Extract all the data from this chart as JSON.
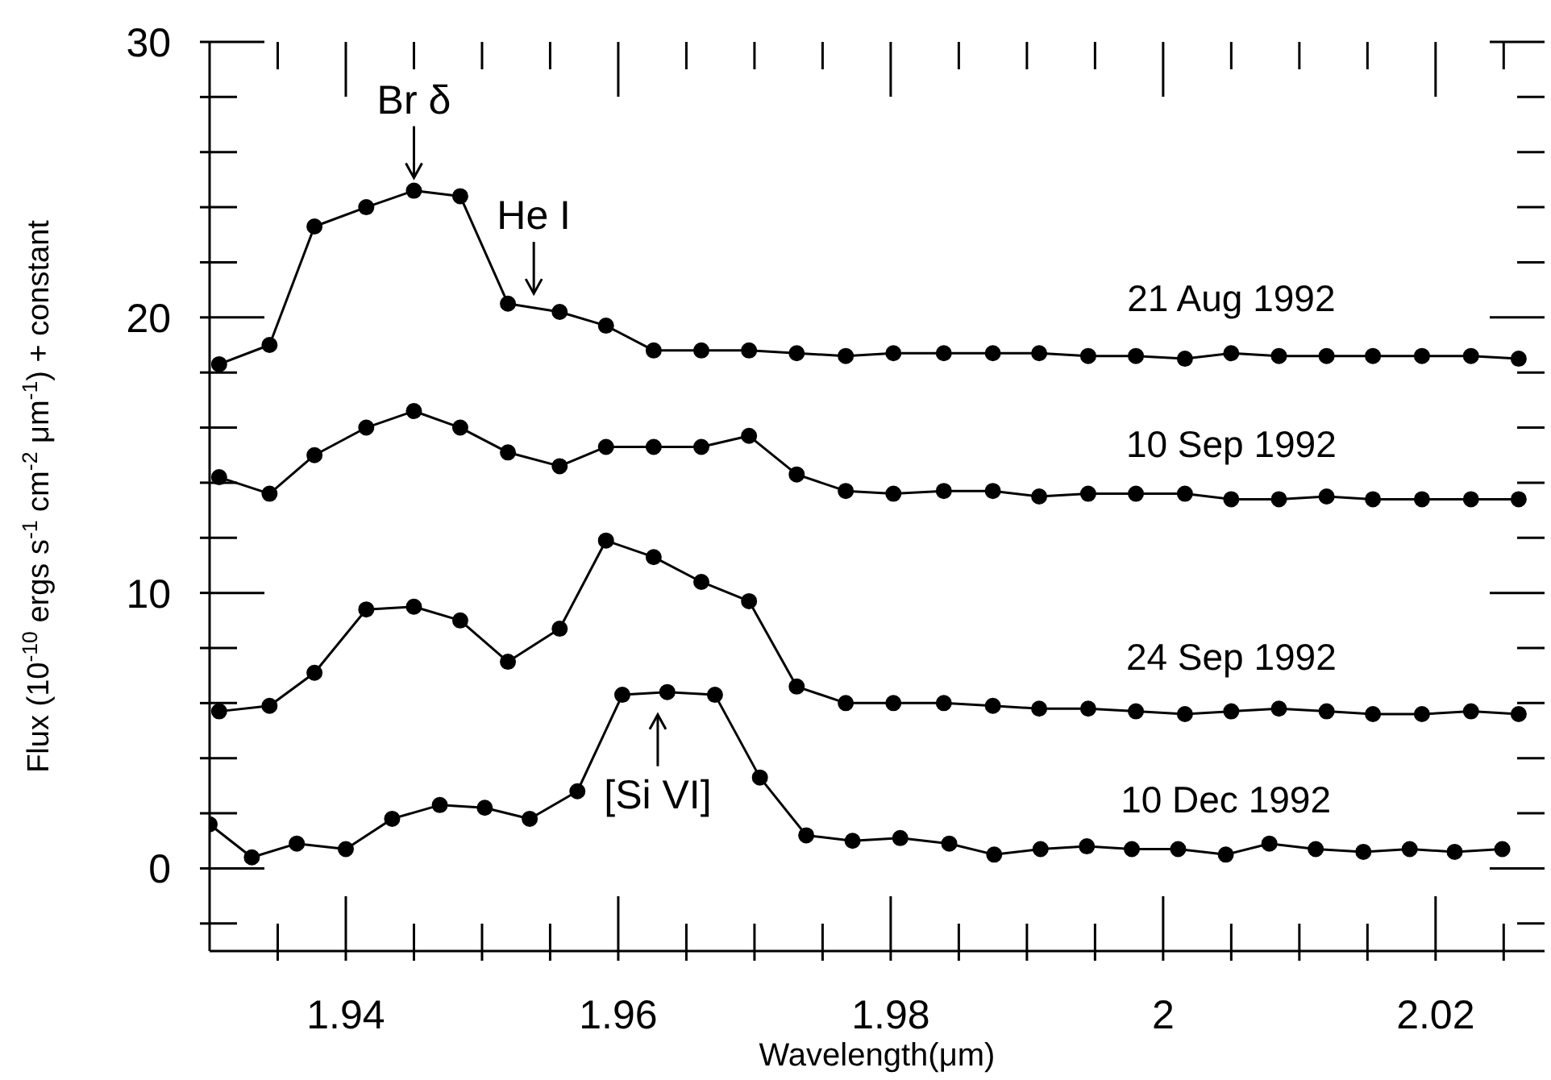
{
  "chart_data": {
    "type": "line",
    "xlabel": "Wavelength(μm)",
    "ylabel": "Flux (10$^{-10}$ ergs s$^{-1}$ cm$^{-2}$ μm$^{-1}$) + constant",
    "xlim": [
      1.93,
      2.028
    ],
    "ylim": [
      -3,
      30
    ],
    "xticks": [
      {
        "value": 1.935,
        "label": null
      },
      1.94,
      {
        "value": 1.945,
        "label": null
      },
      {
        "value": 1.95,
        "label": null
      },
      {
        "value": 1.955,
        "label": null
      },
      1.96,
      {
        "value": 1.965,
        "label": null
      },
      {
        "value": 1.97,
        "label": null
      },
      {
        "value": 1.975,
        "label": null
      },
      1.98,
      {
        "value": 1.985,
        "label": null
      },
      {
        "value": 1.99,
        "label": null
      },
      {
        "value": 1.995,
        "label": null
      },
      2,
      {
        "value": 2.005,
        "label": null
      },
      {
        "value": 2.01,
        "label": null
      },
      {
        "value": 2.015,
        "label": null
      },
      2.02,
      {
        "value": 2.025,
        "label": null
      }
    ],
    "yticks": [
      {
        "value": -2,
        "label": null
      },
      0,
      {
        "value": 2,
        "label": null
      },
      {
        "value": 4,
        "label": null
      },
      {
        "value": 6,
        "label": null
      },
      {
        "value": 8,
        "label": null
      },
      10,
      {
        "value": 12,
        "label": null
      },
      {
        "value": 14,
        "label": null
      },
      {
        "value": 16,
        "label": null
      },
      {
        "value": 18,
        "label": null
      },
      20,
      {
        "value": 22,
        "label": null
      },
      {
        "value": 24,
        "label": null
      },
      {
        "value": 26,
        "label": null
      },
      {
        "value": 28,
        "label": null
      },
      30
    ],
    "marker": "circle",
    "line_style": "solid",
    "legend": false,
    "series": [
      {
        "name": "21 Aug 1992",
        "color": "#000000",
        "x": [
          1.9307,
          1.9344,
          1.9377,
          1.9415,
          1.945,
          1.9484,
          1.9519,
          1.9557,
          1.9591,
          1.9626,
          1.9661,
          1.9696,
          1.9731,
          1.9767,
          1.9802,
          1.9839,
          1.9875,
          1.9909,
          1.9945,
          1.998,
          2.0016,
          2.005,
          2.0085,
          2.012,
          2.0154,
          2.019,
          2.0226,
          2.0261
        ],
        "values": [
          18.3,
          19.0,
          23.3,
          24.0,
          24.6,
          24.4,
          20.5,
          20.2,
          19.7,
          18.8,
          18.8,
          18.8,
          18.7,
          18.6,
          18.7,
          18.7,
          18.7,
          18.7,
          18.6,
          18.6,
          18.5,
          18.7,
          18.6,
          18.6,
          18.6,
          18.6,
          18.6,
          18.5
        ]
      },
      {
        "name": "10 Sep 1992",
        "color": "#000000",
        "x": [
          1.9307,
          1.9344,
          1.9377,
          1.9415,
          1.945,
          1.9484,
          1.9519,
          1.9557,
          1.9591,
          1.9626,
          1.9661,
          1.9696,
          1.9731,
          1.9767,
          1.9802,
          1.9839,
          1.9875,
          1.9909,
          1.9945,
          1.998,
          2.0016,
          2.005,
          2.0085,
          2.012,
          2.0154,
          2.019,
          2.0226,
          2.0261
        ],
        "values": [
          14.2,
          13.6,
          15.0,
          16.0,
          16.6,
          16.0,
          15.1,
          14.6,
          15.3,
          15.3,
          15.3,
          15.7,
          14.3,
          13.7,
          13.6,
          13.7,
          13.7,
          13.5,
          13.6,
          13.6,
          13.6,
          13.4,
          13.4,
          13.5,
          13.4,
          13.4,
          13.4,
          13.4
        ]
      },
      {
        "name": "24 Sep 1992",
        "color": "#000000",
        "x": [
          1.9307,
          1.9344,
          1.9377,
          1.9415,
          1.945,
          1.9484,
          1.9519,
          1.9557,
          1.9591,
          1.9626,
          1.9661,
          1.9696,
          1.9731,
          1.9767,
          1.9802,
          1.9839,
          1.9875,
          1.9909,
          1.9945,
          1.998,
          2.0016,
          2.005,
          2.0085,
          2.012,
          2.0154,
          2.019,
          2.0226,
          2.0261
        ],
        "values": [
          5.7,
          5.9,
          7.1,
          9.4,
          9.5,
          9.0,
          7.5,
          8.7,
          11.9,
          11.3,
          10.4,
          9.7,
          6.6,
          6.0,
          6.0,
          6.0,
          5.9,
          5.8,
          5.8,
          5.7,
          5.6,
          5.7,
          5.8,
          5.7,
          5.6,
          5.6,
          5.7,
          5.6
        ]
      },
      {
        "name": "10 Dec 1992",
        "color": "#000000",
        "x": [
          1.93,
          1.9331,
          1.9364,
          1.94,
          1.9434,
          1.9469,
          1.9502,
          1.9535,
          1.957,
          1.9603,
          1.9636,
          1.9671,
          1.9704,
          1.9738,
          1.9772,
          1.9807,
          1.9843,
          1.9876,
          1.991,
          1.9944,
          1.9977,
          2.0011,
          2.0046,
          2.0078,
          2.0112,
          2.0147,
          2.0181,
          2.0214,
          2.0249
        ],
        "values": [
          1.6,
          0.4,
          0.9,
          0.7,
          1.8,
          2.3,
          2.2,
          1.8,
          2.8,
          6.3,
          6.4,
          6.3,
          3.3,
          1.2,
          1.0,
          1.1,
          0.9,
          0.5,
          0.7,
          0.8,
          0.7,
          0.7,
          0.5,
          0.9,
          0.7,
          0.6,
          0.7,
          0.6,
          0.7
        ]
      }
    ],
    "annotations": [
      {
        "text": "Br δ",
        "x": 1.945,
        "y": 24.6
      },
      {
        "text": "He I",
        "x": 1.9538,
        "y": 20.4
      },
      {
        "text": "[Si VI]",
        "x": 1.9629,
        "y": 6.4
      }
    ]
  }
}
